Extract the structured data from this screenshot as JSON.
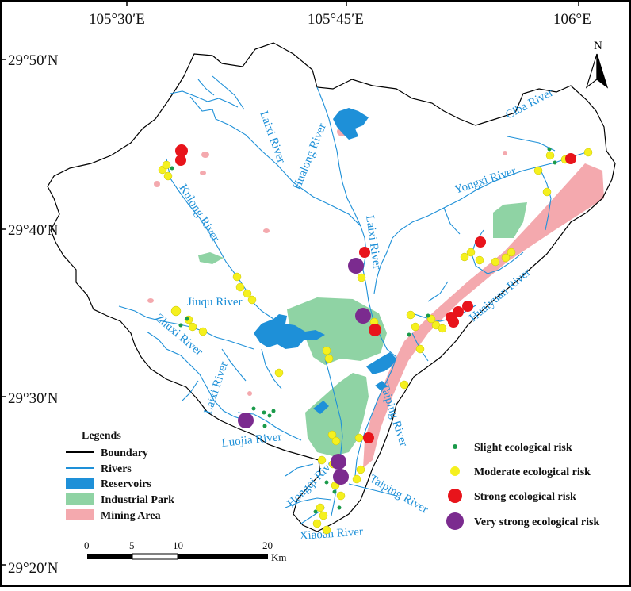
{
  "coordinates": {
    "longitudes": [
      "105°30′E",
      "105°45′E",
      "106°E"
    ],
    "latitudes": [
      "29°50′N",
      "29°40′N",
      "29°30′N",
      "29°20′N"
    ]
  },
  "north_arrow": {
    "label": "N"
  },
  "rivers": [
    "Ciba River",
    "Hualong River",
    "Laixi River",
    "Yongxi River",
    "Kulong River",
    "Laixi River",
    "Jiuqu River",
    "Huaiyuan River",
    "Zhuxi River",
    "Laixi River",
    "Taiping River",
    "Luojia River",
    "Hongqi River",
    "Taiping River",
    "Xiaoan River"
  ],
  "legend_left": {
    "title": "Legends",
    "items": [
      {
        "label": "Boundary",
        "color": "#000000",
        "kind": "line"
      },
      {
        "label": "Rivers",
        "color": "#1e90d8",
        "kind": "line"
      },
      {
        "label": "Reservoirs",
        "color": "#1e90d8",
        "kind": "fill"
      },
      {
        "label": "Industrial Park",
        "color": "#8fd3a4",
        "kind": "fill"
      },
      {
        "label": "Mining Area",
        "color": "#f2a3a8",
        "kind": "fill"
      }
    ]
  },
  "legend_right": {
    "items": [
      {
        "label": "Slight ecological risk",
        "color": "#1a9a4a",
        "size": "small"
      },
      {
        "label": "Moderate ecological risk",
        "color": "#f5f01e",
        "size": "medium"
      },
      {
        "label": "Strong ecological risk",
        "color": "#e8141b",
        "size": "large"
      },
      {
        "label": "Very strong ecological risk",
        "color": "#7b2b8f",
        "size": "xlarge"
      }
    ]
  },
  "scale_bar": {
    "ticks": [
      "0",
      "5",
      "10",
      "20"
    ],
    "unit": "Km"
  }
}
